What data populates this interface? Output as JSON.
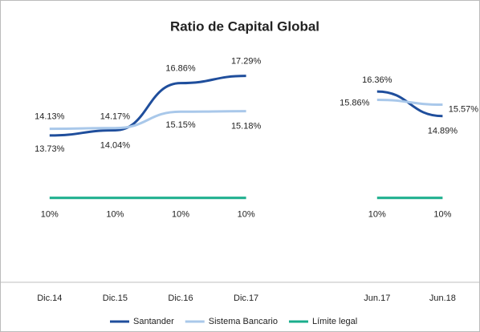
{
  "chart_data": {
    "type": "line",
    "title": "Ratio de Capital Global",
    "categories": [
      "Dic.14",
      "Dic.15",
      "Dic.16",
      "Dic.17",
      null,
      "Jun.17",
      "Jun.18"
    ],
    "series": [
      {
        "name": "Santander",
        "color": "#1f4e9c",
        "values": [
          13.73,
          14.04,
          16.86,
          17.29,
          null,
          16.36,
          14.89
        ],
        "value_labels": [
          "13.73%",
          "14.04%",
          "16.86%",
          "17.29%",
          null,
          "16.36%",
          "14.89%"
        ]
      },
      {
        "name": "Sistema Bancario",
        "color": "#a9c8ea",
        "values": [
          14.13,
          14.17,
          15.15,
          15.18,
          null,
          15.86,
          15.57
        ],
        "value_labels": [
          "14.13%",
          "14.17%",
          "15.15%",
          "15.18%",
          null,
          "15.86%",
          "15.57%"
        ]
      },
      {
        "name": "Límite legal",
        "color": "#1aae8c",
        "values": [
          10,
          10,
          10,
          10,
          null,
          10,
          10
        ],
        "value_labels": [
          "10%",
          "10%",
          "10%",
          "10%",
          null,
          "10%",
          "10%"
        ]
      }
    ],
    "ylim": [
      5,
      19
    ]
  }
}
